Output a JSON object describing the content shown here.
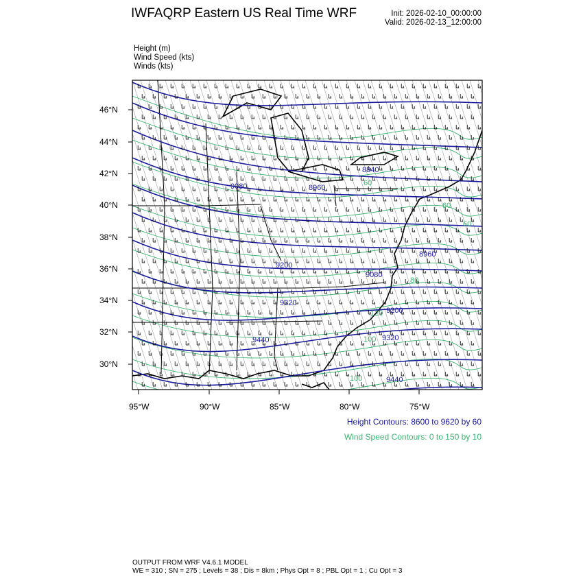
{
  "header": {
    "title": "IWFAQRP Eastern US Real Time WRF",
    "init": "Init: 2026-02-10_00:00:00",
    "valid": "Valid: 2026-02-13_12:00:00"
  },
  "fields": [
    {
      "label": "Height   (m)"
    },
    {
      "label": "Wind Speed   (kts)"
    },
    {
      "label": "Winds   (kts)"
    }
  ],
  "map": {
    "lat_ticks": [
      "46°N",
      "44°N",
      "42°N",
      "40°N",
      "38°N",
      "36°N",
      "34°N",
      "32°N",
      "30°N"
    ],
    "lon_ticks": [
      "95°W",
      "90°W",
      "85°W",
      "80°W",
      "75°W"
    ],
    "height_labels": [
      "9080",
      "8960",
      "8840",
      "9200",
      "9320",
      "9440",
      "8960",
      "9080",
      "9200",
      "9320",
      "9440"
    ],
    "wind_labels": [
      "60",
      "60",
      "40",
      "60",
      "80",
      "100",
      "100",
      "120"
    ],
    "colors": {
      "height": "#1a1a9c",
      "wind_speed": "#3cb371",
      "barbs": "#000000",
      "boundaries": "#000000"
    }
  },
  "legend": {
    "height_contours": "Height Contours: 8600 to 9620 by 60",
    "wind_contours": "Wind Speed Contours: 0 to 150 by 10"
  },
  "footer": {
    "line1": "OUTPUT FROM WRF V4.6.1 MODEL",
    "line2": "WE = 310 ; SN = 275 ; Levels = 38 ; Dis = 8km ; Phys Opt = 8 ; PBL Opt = 1 ; Cu Opt = 3"
  }
}
